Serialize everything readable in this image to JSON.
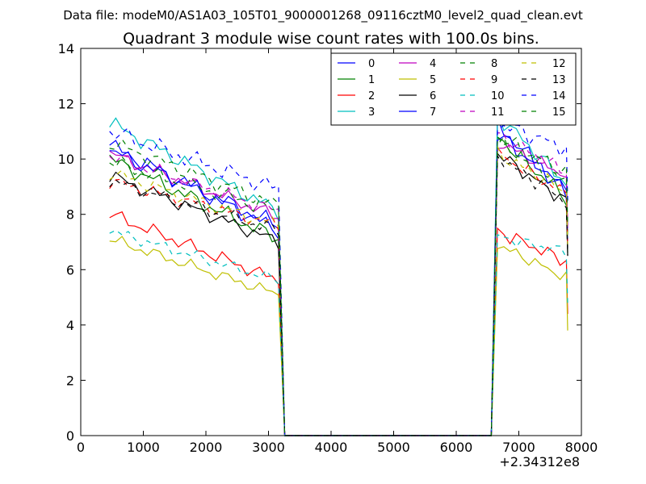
{
  "chart_data": {
    "type": "line",
    "suptitle": "Data file: modeM0/AS1A03_105T01_9000001268_09116cztM0_level2_quad_clean.evt",
    "title": "Quadrant 3 module wise count rates with 100.0s bins.",
    "xlabel": "",
    "ylabel": "",
    "x_offset_label": "+2.34312e8",
    "xlim": [
      0,
      8000
    ],
    "ylim": [
      0,
      14
    ],
    "x_ticks": [
      0,
      1000,
      2000,
      3000,
      4000,
      5000,
      6000,
      7000,
      8000
    ],
    "y_ticks": [
      0,
      2,
      4,
      6,
      8,
      10,
      12,
      14
    ],
    "legend_position": "top-right",
    "x_segment1": [
      460,
      560,
      660,
      760,
      860,
      960,
      1060,
      1160,
      1260,
      1360,
      1460,
      1560,
      1660,
      1760,
      1860,
      1960,
      2060,
      2160,
      2260,
      2360,
      2460,
      2560,
      2660,
      2760,
      2860,
      2960,
      3060,
      3160,
      3260,
      3360
    ],
    "x_segment2": [
      6560,
      6660,
      6760,
      6860,
      6960,
      7060,
      7160,
      7260,
      7360,
      7460,
      7560,
      7660,
      7760,
      7780
    ],
    "series": [
      {
        "name": "0",
        "color": "#0000ff",
        "dash": "solid",
        "start": 10.5,
        "end": 7.4,
        "start2": 11.2,
        "end2": 8.6,
        "amp": 0.35
      },
      {
        "name": "1",
        "color": "#008000",
        "dash": "solid",
        "start": 10.0,
        "end": 7.1,
        "start2": 10.8,
        "end2": 8.4,
        "amp": 0.35
      },
      {
        "name": "2",
        "color": "#ff0000",
        "dash": "solid",
        "start": 8.0,
        "end": 5.6,
        "start2": 7.4,
        "end2": 6.2,
        "amp": 0.3
      },
      {
        "name": "3",
        "color": "#00bfbf",
        "dash": "solid",
        "start": 11.3,
        "end": 8.1,
        "start2": 11.6,
        "end2": 8.9,
        "amp": 0.35
      },
      {
        "name": "4",
        "color": "#bf00bf",
        "dash": "solid",
        "start": 10.2,
        "end": 7.9,
        "start2": 10.6,
        "end2": 9.3,
        "amp": 0.3
      },
      {
        "name": "5",
        "color": "#bfbf00",
        "dash": "solid",
        "start": 7.1,
        "end": 5.1,
        "start2": 6.9,
        "end2": 5.6,
        "amp": 0.25
      },
      {
        "name": "6",
        "color": "#000000",
        "dash": "solid",
        "start": 9.4,
        "end": 7.0,
        "start2": 10.2,
        "end2": 8.3,
        "amp": 0.3
      },
      {
        "name": "7",
        "color": "#0000ff",
        "dash": "solid",
        "start": 10.3,
        "end": 7.6,
        "start2": 10.9,
        "end2": 8.7,
        "amp": 0.35
      },
      {
        "name": "8",
        "color": "#008000",
        "dash": "dashed",
        "start": 9.9,
        "end": 8.1,
        "start2": 10.6,
        "end2": 9.0,
        "amp": 0.35
      },
      {
        "name": "9",
        "color": "#ff0000",
        "dash": "dashed",
        "start": 9.2,
        "end": 7.6,
        "start2": 10.2,
        "end2": 8.6,
        "amp": 0.3
      },
      {
        "name": "10",
        "color": "#00bfbf",
        "dash": "dashed",
        "start": 7.4,
        "end": 5.6,
        "start2": 7.2,
        "end2": 6.6,
        "amp": 0.25
      },
      {
        "name": "11",
        "color": "#bf00bf",
        "dash": "dashed",
        "start": 10.1,
        "end": 8.1,
        "start2": 10.9,
        "end2": 9.4,
        "amp": 0.3
      },
      {
        "name": "12",
        "color": "#bfbf00",
        "dash": "dashed",
        "start": 9.5,
        "end": 7.6,
        "start2": 10.2,
        "end2": 8.7,
        "amp": 0.3
      },
      {
        "name": "13",
        "color": "#000000",
        "dash": "dashed",
        "start": 9.2,
        "end": 7.4,
        "start2": 10.1,
        "end2": 8.3,
        "amp": 0.3
      },
      {
        "name": "14",
        "color": "#0000ff",
        "dash": "dashed",
        "start": 11.0,
        "end": 8.9,
        "start2": 11.3,
        "end2": 10.3,
        "amp": 0.4
      },
      {
        "name": "15",
        "color": "#008000",
        "dash": "dashed",
        "start": 10.6,
        "end": 8.3,
        "start2": 10.8,
        "end2": 9.4,
        "amp": 0.35
      }
    ]
  }
}
